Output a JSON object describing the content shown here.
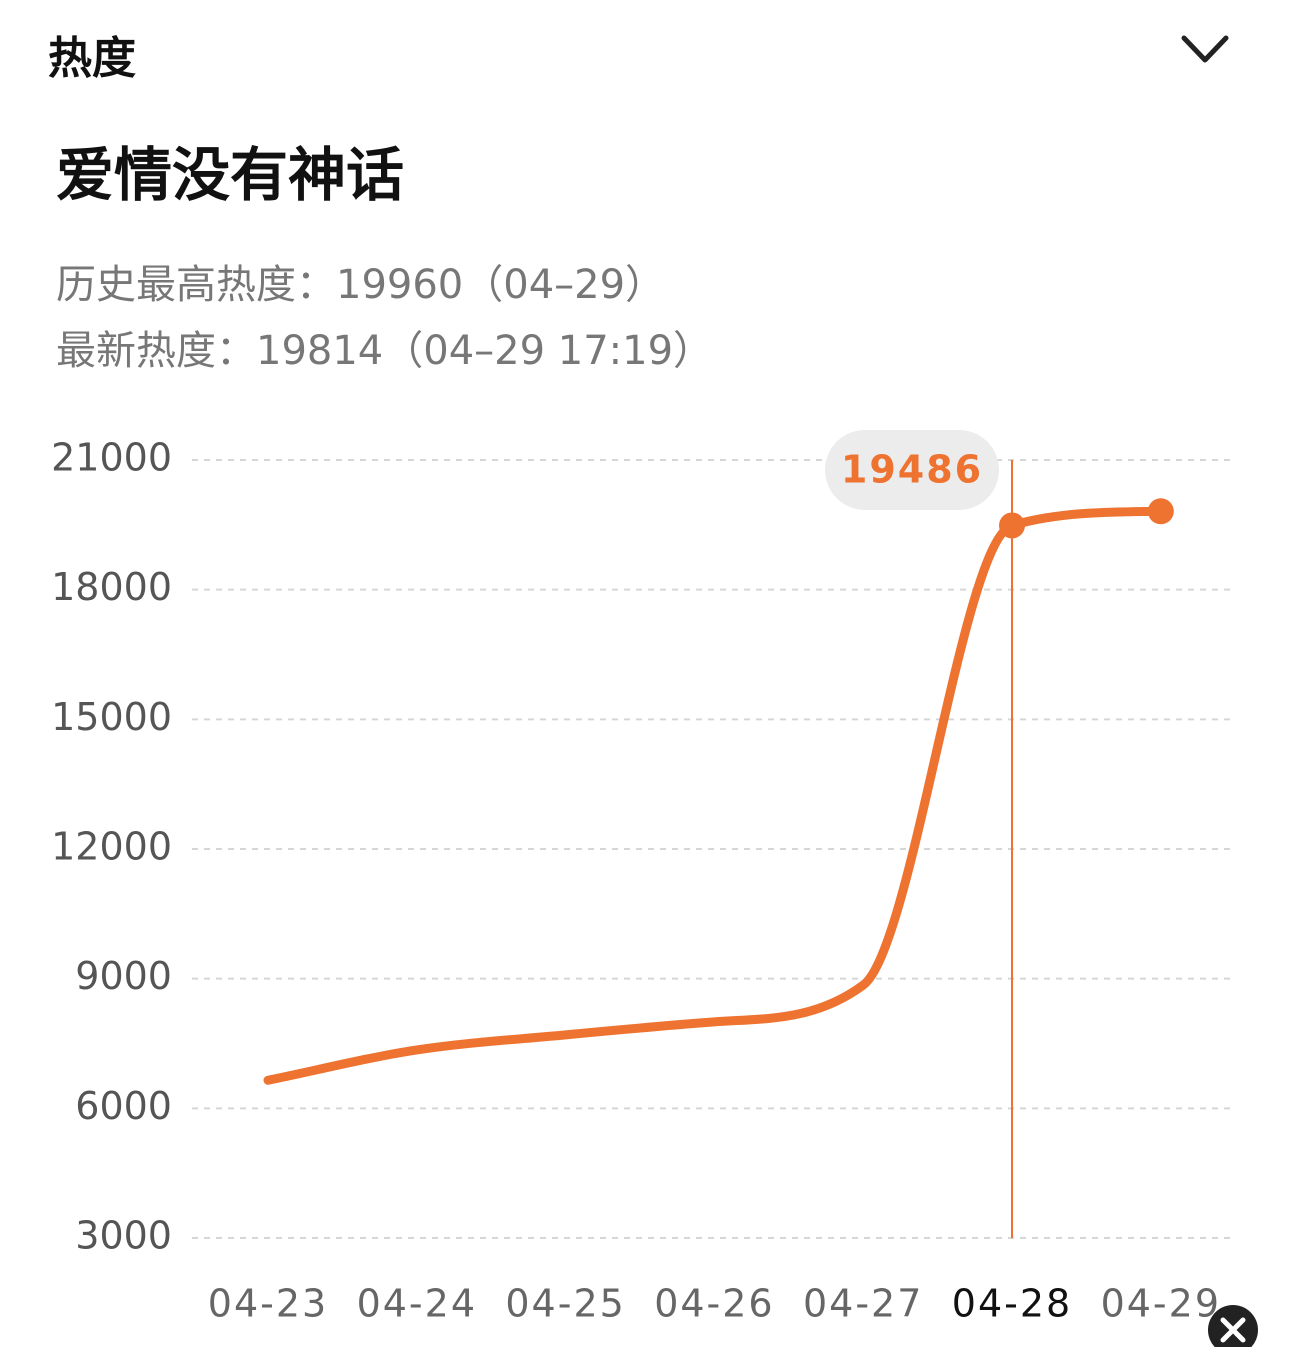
{
  "header": {
    "title": "热度"
  },
  "chart_data": {
    "type": "line",
    "title": "爱情没有神话",
    "annotations": [
      "历史最高热度：19960（04–29）",
      "最新热度：19814（04–29 17:19）"
    ],
    "categories": [
      "04-23",
      "04-24",
      "04-25",
      "04-26",
      "04-27",
      "04-28",
      "04-29"
    ],
    "series": [
      {
        "color": "#ee7331",
        "values": [
          6650,
          7350,
          7700,
          8000,
          8850,
          19486,
          19814
        ]
      }
    ],
    "ylim": [
      3000,
      21000
    ],
    "yticks": [
      3000,
      6000,
      9000,
      12000,
      15000,
      18000,
      21000
    ],
    "grid": true,
    "highlight_index": 5
  }
}
